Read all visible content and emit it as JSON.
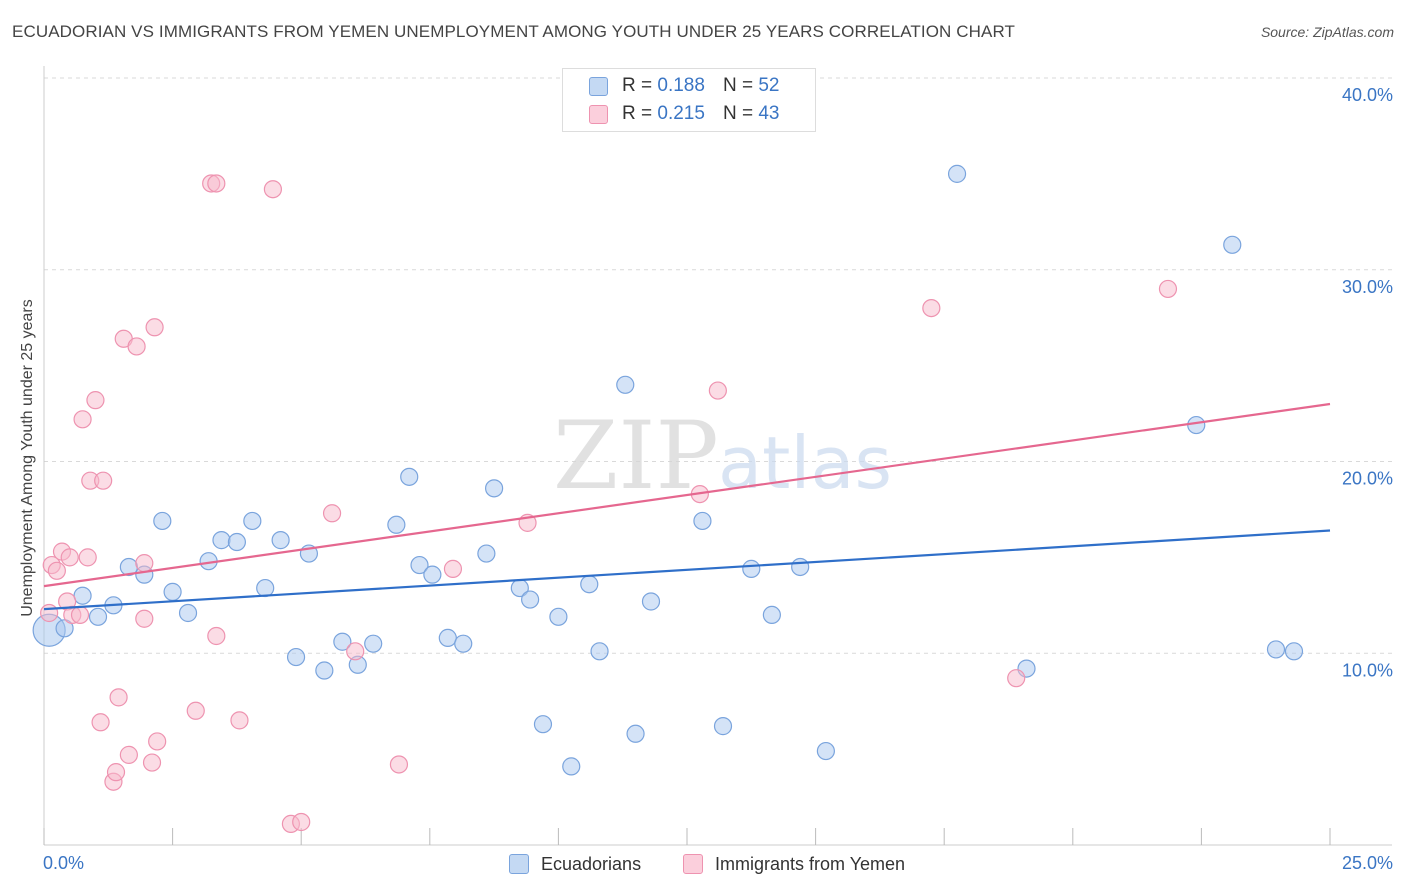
{
  "title": "ECUADORIAN VS IMMIGRANTS FROM YEMEN UNEMPLOYMENT AMONG YOUTH UNDER 25 YEARS CORRELATION CHART",
  "source": "Source: ZipAtlas.com",
  "watermark": {
    "zip": "ZIP",
    "atlas": "atlas"
  },
  "legend": {
    "r_label": "R =",
    "n_label": "N =",
    "rows": [
      {
        "r": "0.188",
        "n": "52"
      },
      {
        "r": "0.215",
        "n": "43"
      }
    ]
  },
  "colors": {
    "blue_fill": "#a9c8ef",
    "blue_stroke": "#7aa4dd",
    "blue_line": "#2f6fc9",
    "pink_fill": "#f7b9cc",
    "pink_stroke": "#ee93b0",
    "pink_line": "#e5678f",
    "tick_label": "#3a75c4"
  },
  "chart_data": {
    "type": "scatter",
    "title": "ECUADORIAN VS IMMIGRANTS FROM YEMEN UNEMPLOYMENT AMONG YOUTH UNDER 25 YEARS CORRELATION CHART",
    "xlabel": "",
    "ylabel": "Unemployment Among Youth under 25 years",
    "xlim": [
      0,
      25
    ],
    "ylim": [
      0,
      40
    ],
    "x_tick_labels": [
      {
        "v": 0,
        "label": "0.0%"
      },
      {
        "v": 25,
        "label": "25.0%"
      }
    ],
    "y_tick_labels": [
      {
        "v": 10,
        "label": "10.0%"
      },
      {
        "v": 20,
        "label": "20.0%"
      },
      {
        "v": 30,
        "label": "30.0%"
      },
      {
        "v": 40,
        "label": "40.0%"
      }
    ],
    "series": [
      {
        "name": "Ecuadorians",
        "trend": {
          "x0": 0,
          "y0": 12.3,
          "x1": 25,
          "y1": 16.4
        },
        "points": [
          [
            0.1,
            11.2,
            1
          ],
          [
            0.4,
            11.3,
            0
          ],
          [
            0.75,
            13.0,
            0
          ],
          [
            1.05,
            11.9,
            0
          ],
          [
            1.35,
            12.5,
            0
          ],
          [
            1.65,
            14.5,
            0
          ],
          [
            1.95,
            14.1,
            0
          ],
          [
            2.3,
            16.9,
            0
          ],
          [
            2.5,
            13.2,
            0
          ],
          [
            2.8,
            12.1,
            0
          ],
          [
            3.2,
            14.8,
            0
          ],
          [
            3.45,
            15.9,
            0
          ],
          [
            3.75,
            15.8,
            0
          ],
          [
            4.05,
            16.9,
            0
          ],
          [
            4.3,
            13.4,
            0
          ],
          [
            4.6,
            15.9,
            0
          ],
          [
            4.9,
            9.8,
            0
          ],
          [
            5.15,
            15.2,
            0
          ],
          [
            5.45,
            9.1,
            0
          ],
          [
            5.8,
            10.6,
            0
          ],
          [
            6.1,
            9.4,
            0
          ],
          [
            6.4,
            10.5,
            0
          ],
          [
            6.85,
            16.7,
            0
          ],
          [
            7.1,
            19.2,
            0
          ],
          [
            7.3,
            14.6,
            0
          ],
          [
            7.55,
            14.1,
            0
          ],
          [
            7.85,
            10.8,
            0
          ],
          [
            8.15,
            10.5,
            0
          ],
          [
            8.6,
            15.2,
            0
          ],
          [
            8.75,
            18.6,
            0
          ],
          [
            9.25,
            13.4,
            0
          ],
          [
            9.45,
            12.8,
            0
          ],
          [
            9.7,
            6.3,
            0
          ],
          [
            10.0,
            11.9,
            0
          ],
          [
            10.25,
            4.1,
            0
          ],
          [
            10.6,
            13.6,
            0
          ],
          [
            10.8,
            10.1,
            0
          ],
          [
            11.3,
            24.0,
            0
          ],
          [
            11.5,
            5.8,
            0
          ],
          [
            11.8,
            12.7,
            0
          ],
          [
            12.8,
            16.9,
            0
          ],
          [
            13.2,
            6.2,
            0
          ],
          [
            13.75,
            14.4,
            0
          ],
          [
            14.15,
            12.0,
            0
          ],
          [
            14.7,
            14.5,
            0
          ],
          [
            15.2,
            4.9,
            0
          ],
          [
            17.75,
            35.0,
            0
          ],
          [
            19.1,
            9.2,
            0
          ],
          [
            22.4,
            21.9,
            0
          ],
          [
            23.1,
            31.3,
            0
          ],
          [
            23.95,
            10.2,
            0
          ],
          [
            24.3,
            10.1,
            0
          ]
        ]
      },
      {
        "name": "Immigrants from Yemen",
        "trend": {
          "x0": 0,
          "y0": 13.5,
          "x1": 25,
          "y1": 23.0
        },
        "points": [
          [
            0.1,
            12.1,
            0
          ],
          [
            0.15,
            14.6,
            0
          ],
          [
            0.25,
            14.3,
            0
          ],
          [
            0.35,
            15.3,
            0
          ],
          [
            0.45,
            12.7,
            0
          ],
          [
            0.5,
            15.0,
            0
          ],
          [
            0.55,
            12.0,
            0
          ],
          [
            0.7,
            12.0,
            0
          ],
          [
            0.75,
            22.2,
            0
          ],
          [
            0.85,
            15.0,
            0
          ],
          [
            0.9,
            19.0,
            0
          ],
          [
            1.0,
            23.2,
            0
          ],
          [
            1.1,
            6.4,
            0
          ],
          [
            1.15,
            19.0,
            0
          ],
          [
            1.35,
            3.3,
            0
          ],
          [
            1.4,
            3.8,
            0
          ],
          [
            1.45,
            7.7,
            0
          ],
          [
            1.55,
            26.4,
            0
          ],
          [
            1.65,
            4.7,
            0
          ],
          [
            1.8,
            26.0,
            0
          ],
          [
            1.95,
            14.7,
            0
          ],
          [
            1.95,
            11.8,
            0
          ],
          [
            2.1,
            4.3,
            0
          ],
          [
            2.15,
            27.0,
            0
          ],
          [
            2.2,
            5.4,
            0
          ],
          [
            2.95,
            7.0,
            0
          ],
          [
            3.25,
            34.5,
            0
          ],
          [
            3.35,
            34.5,
            0
          ],
          [
            3.35,
            10.9,
            0
          ],
          [
            3.8,
            6.5,
            0
          ],
          [
            4.45,
            34.2,
            0
          ],
          [
            4.8,
            1.1,
            0
          ],
          [
            5.0,
            1.2,
            0
          ],
          [
            5.6,
            17.3,
            0
          ],
          [
            6.05,
            10.1,
            0
          ],
          [
            6.9,
            4.2,
            0
          ],
          [
            7.95,
            14.4,
            0
          ],
          [
            9.4,
            16.8,
            0
          ],
          [
            12.75,
            18.3,
            0
          ],
          [
            13.1,
            23.7,
            0
          ],
          [
            17.25,
            28.0,
            0
          ],
          [
            18.9,
            8.7,
            0
          ],
          [
            21.85,
            29.0,
            0
          ]
        ]
      }
    ]
  }
}
